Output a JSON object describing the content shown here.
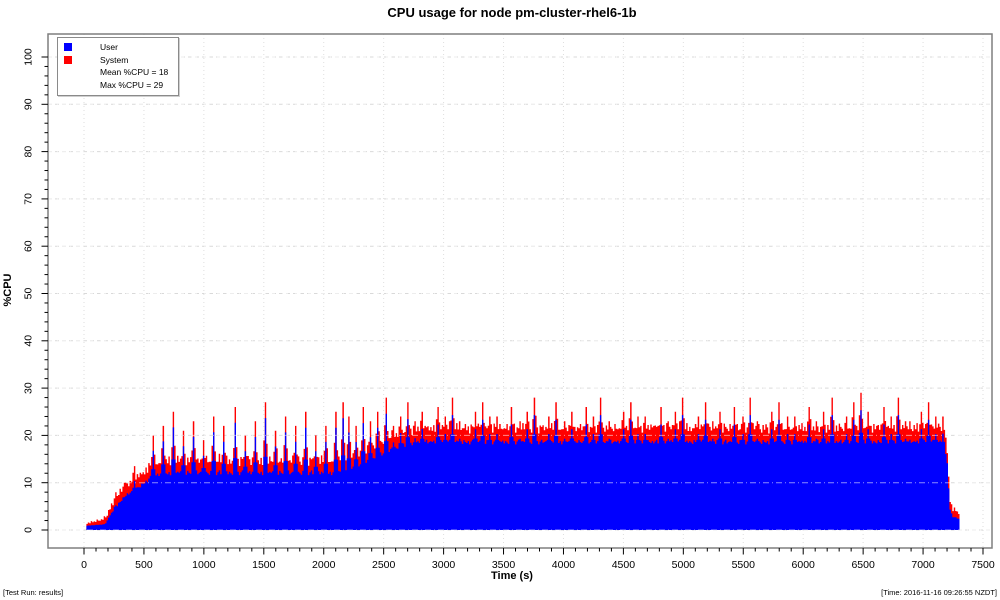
{
  "page": {
    "title": "CPU usage for node pm-cluster-rhel6-1b",
    "footer_left": "[Test Run: results]",
    "footer_right": "[Time: 2016-11-16 09:26:55 NZDT]"
  },
  "legend": {
    "items": [
      {
        "label": "User",
        "color": "#0000ff"
      },
      {
        "label": "System",
        "color": "#ff0000"
      }
    ],
    "stats": [
      "Mean %CPU = 18",
      "Max %CPU = 29"
    ]
  },
  "chart_data": {
    "type": "area",
    "subtype": "stacked-step-area",
    "title": "CPU usage for node pm-cluster-rhel6-1b",
    "xlabel": "Time (s)",
    "ylabel": "%CPU",
    "xlim": [
      0,
      7500
    ],
    "ylim": [
      0,
      100
    ],
    "x_ticks": [
      0,
      500,
      1000,
      1500,
      2000,
      2500,
      3000,
      3500,
      4000,
      4500,
      5000,
      5500,
      6000,
      6500,
      7000,
      7500
    ],
    "y_ticks": [
      0,
      10,
      20,
      30,
      40,
      50,
      60,
      70,
      80,
      90,
      100
    ],
    "x_minor_step": 100,
    "y_minor_step": 2,
    "grid": true,
    "legend_position": "top-left",
    "mean_pct_cpu": 18,
    "max_pct_cpu": 29,
    "series": [
      {
        "name": "User",
        "color": "#0000ff"
      },
      {
        "name": "System",
        "color": "#ff0000"
      }
    ],
    "sampling": {
      "start": 20,
      "end": 7300,
      "step": 12
    },
    "user_base": [
      [
        20,
        0.9
      ],
      [
        170,
        1.2
      ],
      [
        210,
        3
      ],
      [
        250,
        4.5
      ],
      [
        300,
        6
      ],
      [
        360,
        7.5
      ],
      [
        420,
        8.5
      ],
      [
        480,
        9.5
      ],
      [
        540,
        10.8
      ],
      [
        600,
        11.5
      ],
      [
        660,
        11.8
      ],
      [
        720,
        12
      ],
      [
        2100,
        12
      ],
      [
        2250,
        13.2
      ],
      [
        2400,
        15
      ],
      [
        2550,
        16.8
      ],
      [
        2700,
        18
      ],
      [
        2850,
        18.5
      ],
      [
        7150,
        18.5
      ],
      [
        7190,
        16
      ],
      [
        7205,
        10
      ],
      [
        7218,
        4.5
      ],
      [
        7240,
        2.8
      ],
      [
        7300,
        2.3
      ]
    ],
    "system_base": [
      [
        20,
        0.35
      ],
      [
        210,
        1
      ],
      [
        300,
        1.5
      ],
      [
        480,
        1.7
      ],
      [
        720,
        1.8
      ],
      [
        2450,
        1.9
      ],
      [
        2950,
        2.2
      ],
      [
        7150,
        2.2
      ],
      [
        7205,
        1.8
      ],
      [
        7230,
        1.2
      ],
      [
        7300,
        0.9
      ]
    ],
    "user_noise": [
      0.1,
      0.4,
      -0.2,
      0.3,
      0.0,
      -0.3,
      0.5,
      0.1,
      -0.1,
      0.3,
      -0.4,
      0.2,
      0.6,
      -0.2,
      0.1,
      0.3
    ],
    "system_noise": [
      0.2,
      1.1,
      0.3,
      1.6,
      0.5,
      0.9,
      0.1,
      1.4,
      0.6,
      0.2,
      1.0,
      0.4,
      1.7,
      0.7,
      0.1,
      1.2,
      0.5,
      1.5,
      0.3,
      0.8
    ],
    "spike_groups": [
      {
        "start": 260,
        "end": 560,
        "interval": 75,
        "totals": [
          8,
          10,
          13.5,
          12
        ]
      },
      {
        "start": 570,
        "end": 2150,
        "interval": 85,
        "totals": [
          20,
          22,
          25,
          21,
          23,
          19,
          24,
          22,
          26,
          20,
          23,
          27,
          21,
          24,
          22,
          25
        ]
      },
      {
        "start": 2200,
        "end": 7160,
        "interval": 62,
        "totals": [
          24,
          22,
          26,
          23,
          25,
          28,
          22,
          24,
          27,
          23,
          25,
          22,
          26,
          24,
          28,
          23,
          22,
          25,
          27,
          24
        ]
      }
    ],
    "spike_events": [
      {
        "t": 2150,
        "total": 27
      },
      {
        "t": 6470,
        "total": 29
      }
    ],
    "spike_system_tip": 1.5
  }
}
